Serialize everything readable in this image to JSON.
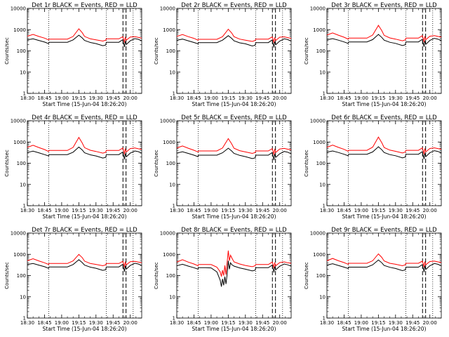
{
  "chart_data": {
    "type": "line",
    "layout": "3x3 grid",
    "x_ticks": [
      "18:30",
      "18:45",
      "19:00",
      "19:15",
      "19:30",
      "19:45",
      "20:00"
    ],
    "xlabel": "Start Time (15-Jun-04 18:26:20)",
    "ylabel": "Counts/sec",
    "y_scale": "log",
    "ylim": [
      1,
      10000
    ],
    "y_ticks": [
      "1",
      "10",
      "100",
      "1000",
      "10000"
    ],
    "x_range_min": [
      0,
      100
    ],
    "vertical_dotted_lines_min": [
      18.67,
      69.0,
      92.5
    ],
    "vertical_dashed_lines_min": [
      83.6,
      86.3
    ],
    "series_colors": {
      "events": "#000000",
      "lld": "#ff0000"
    },
    "panels": [
      {
        "title": "Det 1r BLACK = Events, RED = LLD",
        "x_min": [
          0,
          5,
          10,
          15,
          18.5,
          19,
          25,
          30,
          35,
          40,
          45,
          48,
          50,
          55,
          60,
          66,
          68.5,
          69,
          75,
          80,
          83.5,
          84,
          84.5,
          85,
          85.5,
          86,
          86.5,
          90,
          94,
          97,
          100
        ],
        "events": [
          330,
          370,
          310,
          260,
          220,
          255,
          255,
          255,
          255,
          330,
          550,
          410,
          310,
          250,
          220,
          175,
          190,
          255,
          255,
          255,
          340,
          250,
          200,
          150,
          280,
          240,
          200,
          300,
          380,
          350,
          300
        ],
        "lld": [
          490,
          600,
          480,
          400,
          330,
          360,
          360,
          360,
          360,
          480,
          1100,
          720,
          480,
          370,
          330,
          290,
          320,
          370,
          370,
          370,
          470,
          380,
          320,
          250,
          420,
          380,
          320,
          450,
          470,
          430,
          400
        ]
      },
      {
        "title": "Det 2r BLACK = Events, RED = LLD",
        "x_min": [
          0,
          5,
          10,
          15,
          18.5,
          19,
          25,
          30,
          35,
          40,
          45,
          48,
          50,
          55,
          60,
          66,
          68.5,
          69,
          75,
          80,
          83.5,
          84,
          84.5,
          85,
          85.5,
          86,
          86.5,
          90,
          94,
          97,
          100
        ],
        "events": [
          320,
          360,
          300,
          250,
          215,
          245,
          245,
          245,
          245,
          320,
          520,
          390,
          300,
          240,
          215,
          170,
          185,
          245,
          245,
          245,
          330,
          240,
          195,
          145,
          270,
          230,
          195,
          290,
          370,
          340,
          290
        ],
        "lld": [
          480,
          590,
          470,
          390,
          320,
          350,
          350,
          350,
          350,
          470,
          1050,
          700,
          470,
          360,
          320,
          280,
          310,
          360,
          360,
          360,
          460,
          370,
          310,
          245,
          410,
          370,
          310,
          440,
          460,
          420,
          390
        ]
      },
      {
        "title": "Det 3r BLACK = Events, RED = LLD",
        "x_min": [
          0,
          5,
          10,
          15,
          18.5,
          19,
          25,
          30,
          35,
          40,
          45,
          48,
          50,
          55,
          60,
          66,
          68.5,
          69,
          75,
          80,
          83.5,
          84,
          84.5,
          85,
          85.5,
          86,
          86.5,
          90,
          94,
          97,
          100
        ],
        "events": [
          330,
          380,
          320,
          265,
          225,
          265,
          265,
          265,
          265,
          340,
          600,
          430,
          320,
          255,
          225,
          180,
          195,
          265,
          265,
          265,
          350,
          255,
          205,
          155,
          285,
          245,
          205,
          310,
          390,
          360,
          310
        ],
        "lld": [
          560,
          700,
          550,
          440,
          360,
          400,
          400,
          400,
          400,
          560,
          1600,
          900,
          540,
          410,
          360,
          300,
          330,
          400,
          400,
          400,
          520,
          410,
          340,
          260,
          460,
          400,
          340,
          490,
          520,
          480,
          450
        ]
      },
      {
        "title": "Det 4r BLACK = Events, RED = LLD",
        "x_min": [
          0,
          5,
          10,
          15,
          18.5,
          19,
          25,
          30,
          35,
          40,
          45,
          48,
          50,
          55,
          60,
          66,
          68.5,
          69,
          75,
          80,
          83.5,
          84,
          84.5,
          85,
          85.5,
          86,
          86.5,
          90,
          94,
          97,
          100
        ],
        "events": [
          320,
          370,
          310,
          255,
          220,
          255,
          255,
          255,
          255,
          330,
          580,
          420,
          310,
          250,
          220,
          175,
          190,
          255,
          255,
          255,
          340,
          250,
          200,
          150,
          280,
          240,
          200,
          300,
          380,
          350,
          300
        ],
        "lld": [
          560,
          700,
          550,
          440,
          360,
          400,
          400,
          400,
          400,
          560,
          1650,
          900,
          540,
          410,
          360,
          300,
          330,
          400,
          400,
          400,
          520,
          410,
          340,
          260,
          460,
          400,
          340,
          490,
          520,
          480,
          450
        ]
      },
      {
        "title": "Det 5r BLACK = Events, RED = LLD",
        "x_min": [
          0,
          5,
          10,
          15,
          18.5,
          19,
          25,
          30,
          35,
          40,
          45,
          48,
          50,
          55,
          60,
          66,
          68.5,
          69,
          75,
          80,
          83.5,
          84,
          84.5,
          85,
          85.5,
          86,
          86.5,
          90,
          94,
          97,
          100
        ],
        "events": [
          300,
          345,
          290,
          240,
          205,
          240,
          240,
          240,
          240,
          310,
          510,
          380,
          290,
          235,
          205,
          165,
          180,
          240,
          240,
          240,
          320,
          235,
          190,
          140,
          265,
          225,
          190,
          280,
          360,
          330,
          280
        ],
        "lld": [
          520,
          650,
          510,
          410,
          340,
          380,
          380,
          380,
          380,
          520,
          1450,
          820,
          510,
          390,
          340,
          290,
          320,
          380,
          380,
          380,
          490,
          390,
          325,
          250,
          440,
          385,
          325,
          470,
          500,
          460,
          430
        ]
      },
      {
        "title": "Det 6r BLACK = Events, RED = LLD",
        "x_min": [
          0,
          5,
          10,
          15,
          18.5,
          19,
          25,
          30,
          35,
          40,
          45,
          48,
          50,
          55,
          60,
          66,
          68.5,
          69,
          75,
          80,
          83.5,
          84,
          84.5,
          85,
          85.5,
          86,
          86.5,
          90,
          94,
          97,
          100
        ],
        "events": [
          330,
          380,
          320,
          265,
          225,
          265,
          265,
          265,
          265,
          340,
          600,
          430,
          320,
          255,
          225,
          180,
          195,
          265,
          265,
          265,
          350,
          255,
          205,
          155,
          285,
          245,
          205,
          310,
          390,
          360,
          310
        ],
        "lld": [
          560,
          710,
          560,
          450,
          365,
          405,
          405,
          405,
          405,
          570,
          1700,
          920,
          550,
          415,
          365,
          305,
          335,
          405,
          405,
          405,
          530,
          415,
          345,
          265,
          465,
          405,
          345,
          495,
          530,
          490,
          455
        ]
      },
      {
        "title": "Det 7r BLACK = Events, RED = LLD",
        "x_min": [
          0,
          5,
          10,
          15,
          18.5,
          19,
          25,
          30,
          35,
          40,
          45,
          48,
          50,
          55,
          60,
          66,
          68.5,
          69,
          75,
          80,
          83.5,
          84,
          84.5,
          85,
          85.5,
          86,
          86.5,
          90,
          94,
          97,
          100
        ],
        "events": [
          330,
          370,
          310,
          260,
          220,
          255,
          255,
          255,
          255,
          330,
          560,
          410,
          310,
          250,
          220,
          175,
          190,
          255,
          255,
          255,
          340,
          250,
          200,
          150,
          280,
          240,
          200,
          300,
          380,
          350,
          300
        ],
        "lld": [
          500,
          620,
          490,
          400,
          335,
          370,
          370,
          370,
          370,
          490,
          1000,
          700,
          480,
          370,
          335,
          290,
          320,
          370,
          370,
          370,
          470,
          380,
          320,
          250,
          420,
          380,
          320,
          450,
          470,
          430,
          400
        ]
      },
      {
        "title": "Det 8r BLACK = Events, RED = LLD",
        "x_min": [
          0,
          5,
          10,
          15,
          18.5,
          19,
          25,
          30,
          35,
          38,
          39,
          40,
          41,
          42,
          43,
          44,
          45,
          46,
          47,
          48,
          50,
          55,
          60,
          66,
          68.5,
          69,
          75,
          80,
          83.5,
          84,
          84.5,
          85,
          85.5,
          86,
          86.5,
          90,
          94,
          97,
          100
        ],
        "events": [
          290,
          340,
          280,
          235,
          200,
          235,
          235,
          230,
          150,
          60,
          30,
          70,
          35,
          90,
          40,
          110,
          500,
          200,
          400,
          330,
          280,
          230,
          200,
          165,
          180,
          235,
          235,
          235,
          310,
          230,
          185,
          140,
          260,
          220,
          185,
          275,
          350,
          320,
          275
        ],
        "lld": [
          430,
          560,
          430,
          350,
          290,
          330,
          330,
          330,
          250,
          150,
          90,
          180,
          100,
          300,
          110,
          400,
          1500,
          500,
          900,
          700,
          440,
          350,
          300,
          260,
          290,
          330,
          330,
          330,
          430,
          350,
          290,
          230,
          390,
          350,
          290,
          410,
          440,
          400,
          380
        ]
      },
      {
        "title": "Det 9r BLACK = Events, RED = LLD",
        "x_min": [
          0,
          5,
          10,
          15,
          18.5,
          19,
          25,
          30,
          35,
          40,
          45,
          48,
          50,
          55,
          60,
          66,
          68.5,
          69,
          75,
          80,
          83.5,
          84,
          84.5,
          85,
          85.5,
          86,
          86.5,
          90,
          94,
          97,
          100
        ],
        "events": [
          310,
          360,
          300,
          250,
          215,
          250,
          250,
          250,
          250,
          320,
          540,
          400,
          300,
          245,
          215,
          170,
          185,
          250,
          250,
          250,
          330,
          245,
          195,
          145,
          270,
          235,
          195,
          290,
          370,
          340,
          290
        ],
        "lld": [
          500,
          640,
          500,
          410,
          340,
          380,
          380,
          380,
          380,
          500,
          1050,
          720,
          490,
          380,
          340,
          290,
          320,
          380,
          380,
          380,
          480,
          385,
          325,
          250,
          430,
          385,
          325,
          460,
          480,
          440,
          410
        ]
      }
    ]
  }
}
